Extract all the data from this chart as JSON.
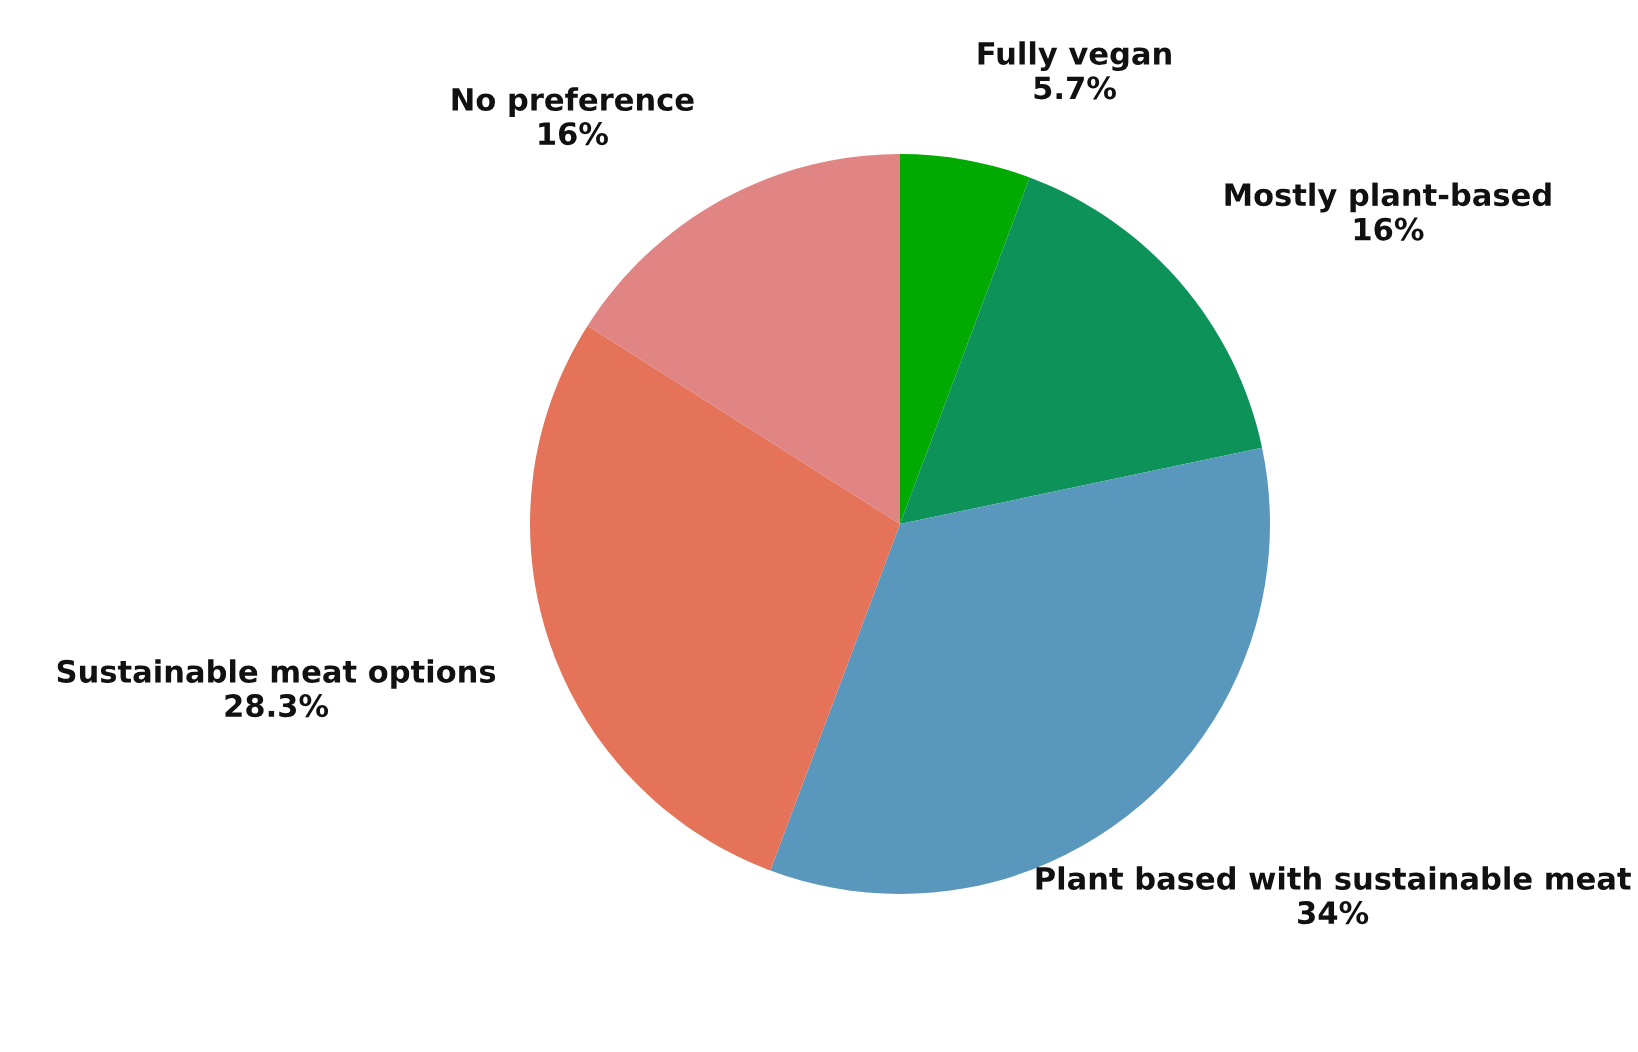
{
  "chart_data": {
    "type": "pie",
    "categories": [
      "Fully vegan",
      "Mostly plant-based",
      "Plant based with sustainable meat",
      "Sustainable meat options",
      "No preference"
    ],
    "values": [
      5.7,
      16,
      34,
      28.3,
      16
    ],
    "value_labels": [
      "5.7%",
      "16%",
      "34%",
      "28.3%",
      "16%"
    ],
    "colors": [
      "#00aa00",
      "#0d935a",
      "#5a97bc",
      "#e47359",
      "#e08584"
    ],
    "legend": false
  }
}
